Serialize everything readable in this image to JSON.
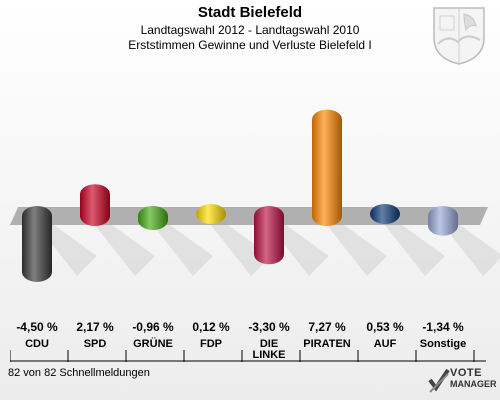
{
  "header": {
    "title": "Stadt Bielefeld",
    "subtitle": "Landtagswahl 2012 - Landtagswahl 2010",
    "subtitle2": "Erststimmen Gewinne und Verluste Bielefeld I"
  },
  "footer": {
    "status": "82 von 82 Schnellmeldungen"
  },
  "logo": {
    "line1": "VOTE",
    "line2": "MANAGER"
  },
  "chart_data": {
    "type": "bar",
    "title": "Stadt Bielefeld",
    "categories": [
      "CDU",
      "SPD",
      "GRÜNE",
      "FDP",
      "DIE LINKE",
      "PIRATEN",
      "AUF",
      "Sonstige"
    ],
    "values": [
      -4.5,
      2.17,
      -0.96,
      0.12,
      -3.3,
      7.27,
      0.53,
      -1.34
    ],
    "value_labels": [
      "-4,50 %",
      "2,17 %",
      "-0,96 %",
      "0,12 %",
      "-3,30 %",
      "7,27 %",
      "0,53 %",
      "-1,34 %"
    ],
    "category_labels": [
      [
        "CDU"
      ],
      [
        "SPD"
      ],
      [
        "GRÜNE"
      ],
      [
        "FDP"
      ],
      [
        "DIE",
        "LINKE"
      ],
      [
        "PIRATEN"
      ],
      [
        "AUF"
      ],
      [
        "Sonstige"
      ]
    ],
    "colors": [
      "#3a3a3a",
      "#cc0022",
      "#44aa11",
      "#ffdd00",
      "#bb1144",
      "#ff8800",
      "#0a3a7a",
      "#99a8d8"
    ],
    "ylim": [
      -4.5,
      7.27
    ],
    "grid": false,
    "legend": "none"
  }
}
